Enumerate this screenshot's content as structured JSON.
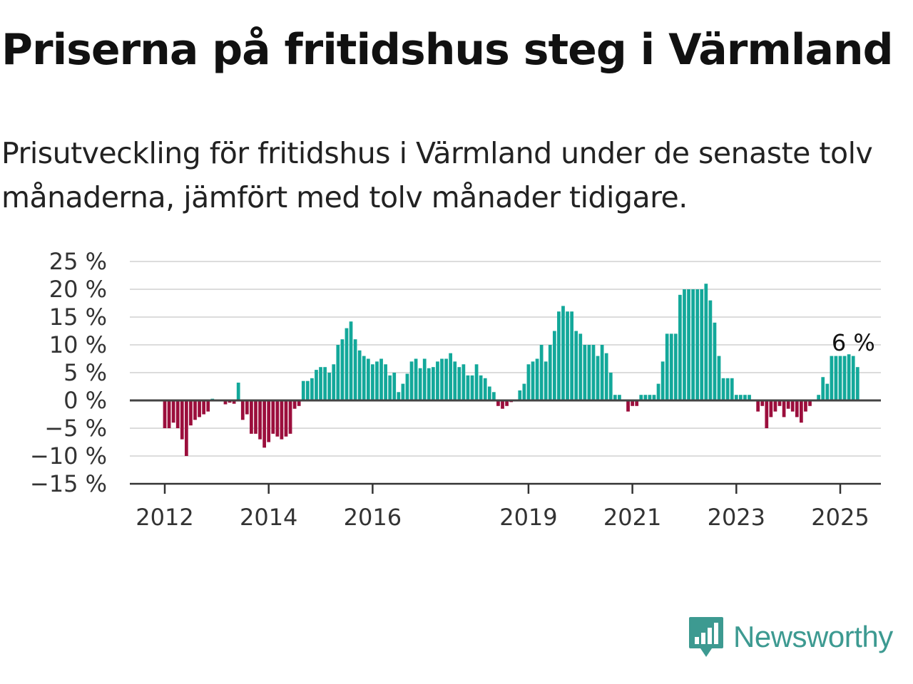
{
  "title": "Priserna på fritidshus steg i Värmland",
  "subtitle": "Prisutveckling för fritidshus i Värmland under de senaste tolv månaderna, jämfört med tolv månader tidigare.",
  "logo": {
    "icon": "bar-chart-icon",
    "text": "Newsworthy",
    "color": "#3d9a91"
  },
  "colors": {
    "positive": "#13a89a",
    "negative": "#9b0e3c",
    "grid": "#dcdcdc",
    "zero_line": "#444444"
  },
  "chart_data": {
    "type": "bar",
    "title": "",
    "xlabel": "",
    "ylabel": "",
    "ylim": [
      -15,
      25
    ],
    "y_ticks": [
      25,
      20,
      15,
      10,
      5,
      0,
      -5,
      -10,
      -15
    ],
    "y_tick_labels": [
      "25 %",
      "20 %",
      "15 %",
      "10 %",
      "5 %",
      "0 %",
      "−5 %",
      "−10 %",
      "−15 %"
    ],
    "x_ticks": [
      {
        "label": "2012",
        "year": 2012
      },
      {
        "label": "2014",
        "year": 2014
      },
      {
        "label": "2016",
        "year": 2016
      },
      {
        "label": "2019",
        "year": 2019
      },
      {
        "label": "2021",
        "year": 2021
      },
      {
        "label": "2023",
        "year": 2023
      },
      {
        "label": "2025",
        "year": 2025
      }
    ],
    "grid": true,
    "legend": "none",
    "start_period": "2012-01",
    "series": [
      {
        "values": [
          -5,
          -5,
          -4,
          -5,
          -7,
          -10,
          -4.5,
          -3.5,
          -3,
          -2.5,
          -2,
          0.3,
          0,
          0,
          -0.7,
          -0.4,
          -0.6,
          3.2,
          -3.5,
          -2.5,
          -6,
          -6,
          -7,
          -8.5,
          -7.5,
          -6,
          -6.5,
          -7,
          -6.5,
          -6,
          -1.5,
          -1,
          3.5,
          3.5,
          4,
          5.5,
          6,
          6,
          5,
          6.5,
          10,
          11,
          13,
          14.2,
          11,
          9,
          8,
          7.5,
          6.5,
          7,
          7.5,
          6.5,
          4.5,
          5,
          1.5,
          3,
          4.8,
          7,
          7.5,
          5.8,
          7.5,
          5.8,
          6,
          7,
          7.5,
          7.5,
          8.5,
          7,
          6,
          6.5,
          4.5,
          4.5,
          6.5,
          4.5,
          4,
          2.5,
          1.5,
          -1,
          -1.5,
          -1,
          -0.3,
          0,
          1.8,
          3,
          6.5,
          7,
          7.5,
          10,
          7,
          10,
          12.5,
          16,
          17,
          16,
          16,
          12.5,
          12,
          10,
          10,
          10,
          8,
          10,
          8.5,
          5,
          1,
          1,
          0,
          -2,
          -1,
          -1,
          1,
          1,
          1,
          1,
          3,
          7,
          12,
          12,
          12,
          19,
          20,
          20,
          20,
          20,
          20,
          21,
          18,
          14,
          8,
          4,
          4,
          4,
          1,
          1,
          1,
          1,
          0,
          -2,
          -1,
          -5,
          -3,
          -2,
          -1,
          -3,
          -1.5,
          -2,
          -3,
          -4,
          -2,
          -1,
          0,
          1,
          4.2,
          3,
          8,
          8,
          8,
          8,
          8.3,
          8,
          6
        ]
      }
    ],
    "annotations": [
      {
        "label": "6 %",
        "target": "last-bar"
      }
    ]
  }
}
